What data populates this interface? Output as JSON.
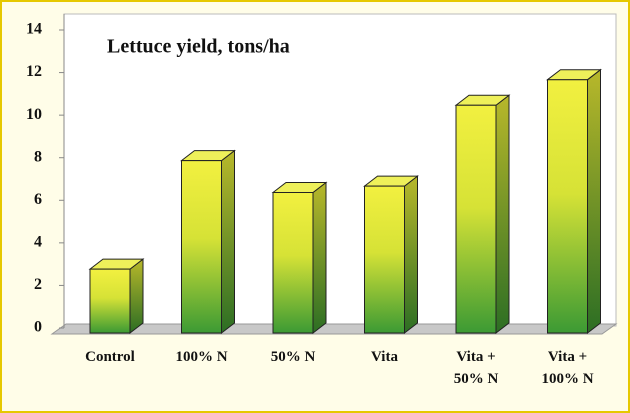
{
  "chart_data": {
    "type": "bar3d",
    "title": "Lettuce yield, tons/ha",
    "categories": [
      "Control",
      "100% N",
      "50% N",
      "Vita",
      "Vita + 50% N",
      "Vita + 100% N"
    ],
    "values": [
      3,
      8.1,
      6.6,
      6.9,
      10.7,
      11.9
    ],
    "ylim": [
      0,
      14
    ],
    "yticks": [
      0,
      2,
      4,
      6,
      8,
      10,
      12,
      14
    ],
    "grid": false
  }
}
